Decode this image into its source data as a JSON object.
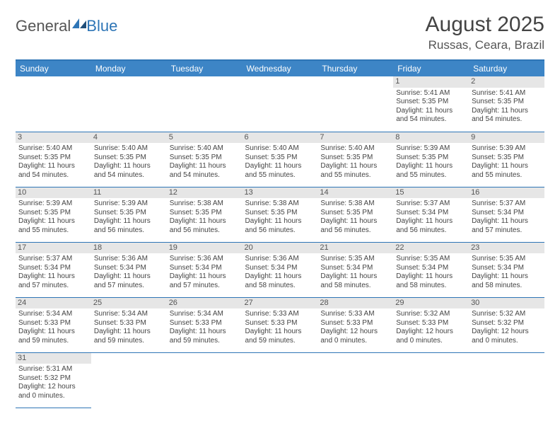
{
  "logo": {
    "text1": "General",
    "text2": "Blue"
  },
  "title": "August 2025",
  "location": "Russas, Ceara, Brazil",
  "colors": {
    "header_bg": "#3d85c6",
    "header_text": "#ffffff",
    "rule": "#2e75b6",
    "daynum_bg": "#e6e6e6",
    "body_text": "#444444"
  },
  "day_headers": [
    "Sunday",
    "Monday",
    "Tuesday",
    "Wednesday",
    "Thursday",
    "Friday",
    "Saturday"
  ],
  "weeks": [
    [
      null,
      null,
      null,
      null,
      null,
      {
        "n": "1",
        "sunrise": "5:41 AM",
        "sunset": "5:35 PM",
        "dl": "11 hours and 54 minutes."
      },
      {
        "n": "2",
        "sunrise": "5:41 AM",
        "sunset": "5:35 PM",
        "dl": "11 hours and 54 minutes."
      }
    ],
    [
      {
        "n": "3",
        "sunrise": "5:40 AM",
        "sunset": "5:35 PM",
        "dl": "11 hours and 54 minutes."
      },
      {
        "n": "4",
        "sunrise": "5:40 AM",
        "sunset": "5:35 PM",
        "dl": "11 hours and 54 minutes."
      },
      {
        "n": "5",
        "sunrise": "5:40 AM",
        "sunset": "5:35 PM",
        "dl": "11 hours and 54 minutes."
      },
      {
        "n": "6",
        "sunrise": "5:40 AM",
        "sunset": "5:35 PM",
        "dl": "11 hours and 55 minutes."
      },
      {
        "n": "7",
        "sunrise": "5:40 AM",
        "sunset": "5:35 PM",
        "dl": "11 hours and 55 minutes."
      },
      {
        "n": "8",
        "sunrise": "5:39 AM",
        "sunset": "5:35 PM",
        "dl": "11 hours and 55 minutes."
      },
      {
        "n": "9",
        "sunrise": "5:39 AM",
        "sunset": "5:35 PM",
        "dl": "11 hours and 55 minutes."
      }
    ],
    [
      {
        "n": "10",
        "sunrise": "5:39 AM",
        "sunset": "5:35 PM",
        "dl": "11 hours and 55 minutes."
      },
      {
        "n": "11",
        "sunrise": "5:39 AM",
        "sunset": "5:35 PM",
        "dl": "11 hours and 56 minutes."
      },
      {
        "n": "12",
        "sunrise": "5:38 AM",
        "sunset": "5:35 PM",
        "dl": "11 hours and 56 minutes."
      },
      {
        "n": "13",
        "sunrise": "5:38 AM",
        "sunset": "5:35 PM",
        "dl": "11 hours and 56 minutes."
      },
      {
        "n": "14",
        "sunrise": "5:38 AM",
        "sunset": "5:35 PM",
        "dl": "11 hours and 56 minutes."
      },
      {
        "n": "15",
        "sunrise": "5:37 AM",
        "sunset": "5:34 PM",
        "dl": "11 hours and 56 minutes."
      },
      {
        "n": "16",
        "sunrise": "5:37 AM",
        "sunset": "5:34 PM",
        "dl": "11 hours and 57 minutes."
      }
    ],
    [
      {
        "n": "17",
        "sunrise": "5:37 AM",
        "sunset": "5:34 PM",
        "dl": "11 hours and 57 minutes."
      },
      {
        "n": "18",
        "sunrise": "5:36 AM",
        "sunset": "5:34 PM",
        "dl": "11 hours and 57 minutes."
      },
      {
        "n": "19",
        "sunrise": "5:36 AM",
        "sunset": "5:34 PM",
        "dl": "11 hours and 57 minutes."
      },
      {
        "n": "20",
        "sunrise": "5:36 AM",
        "sunset": "5:34 PM",
        "dl": "11 hours and 58 minutes."
      },
      {
        "n": "21",
        "sunrise": "5:35 AM",
        "sunset": "5:34 PM",
        "dl": "11 hours and 58 minutes."
      },
      {
        "n": "22",
        "sunrise": "5:35 AM",
        "sunset": "5:34 PM",
        "dl": "11 hours and 58 minutes."
      },
      {
        "n": "23",
        "sunrise": "5:35 AM",
        "sunset": "5:34 PM",
        "dl": "11 hours and 58 minutes."
      }
    ],
    [
      {
        "n": "24",
        "sunrise": "5:34 AM",
        "sunset": "5:33 PM",
        "dl": "11 hours and 59 minutes."
      },
      {
        "n": "25",
        "sunrise": "5:34 AM",
        "sunset": "5:33 PM",
        "dl": "11 hours and 59 minutes."
      },
      {
        "n": "26",
        "sunrise": "5:34 AM",
        "sunset": "5:33 PM",
        "dl": "11 hours and 59 minutes."
      },
      {
        "n": "27",
        "sunrise": "5:33 AM",
        "sunset": "5:33 PM",
        "dl": "11 hours and 59 minutes."
      },
      {
        "n": "28",
        "sunrise": "5:33 AM",
        "sunset": "5:33 PM",
        "dl": "12 hours and 0 minutes."
      },
      {
        "n": "29",
        "sunrise": "5:32 AM",
        "sunset": "5:33 PM",
        "dl": "12 hours and 0 minutes."
      },
      {
        "n": "30",
        "sunrise": "5:32 AM",
        "sunset": "5:32 PM",
        "dl": "12 hours and 0 minutes."
      }
    ],
    [
      {
        "n": "31",
        "sunrise": "5:31 AM",
        "sunset": "5:32 PM",
        "dl": "12 hours and 0 minutes."
      },
      null,
      null,
      null,
      null,
      null,
      null
    ]
  ],
  "labels": {
    "sunrise": "Sunrise: ",
    "sunset": "Sunset: ",
    "daylight": "Daylight: "
  }
}
